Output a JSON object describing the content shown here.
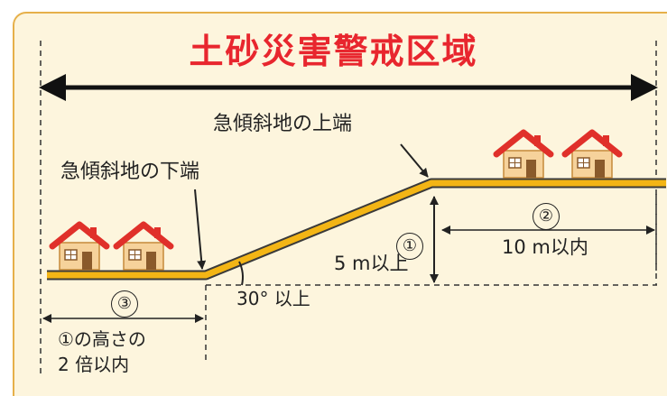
{
  "title": "土砂災害警戒区域",
  "labels": {
    "slope_top": "急傾斜地の上端",
    "slope_bottom": "急傾斜地の下端",
    "height": "5 m以上",
    "angle": "30° 以上",
    "upper_distance": "10 m以内",
    "lower_distance_line1": "①の高さの",
    "lower_distance_line2": "2 倍以内"
  },
  "markers": {
    "m1": "①",
    "m2": "②",
    "m3": "③"
  },
  "colors": {
    "background": "#fdf5dd",
    "border": "#e6b04a",
    "title": "#e8262e",
    "ground": "#f3b515",
    "ground_edge": "#3a3a3a",
    "arrow": "#111111",
    "roof": "#e0302a",
    "wall": "#f6d29b",
    "door": "#8a5a2b"
  },
  "icons": [
    "house-icon"
  ]
}
